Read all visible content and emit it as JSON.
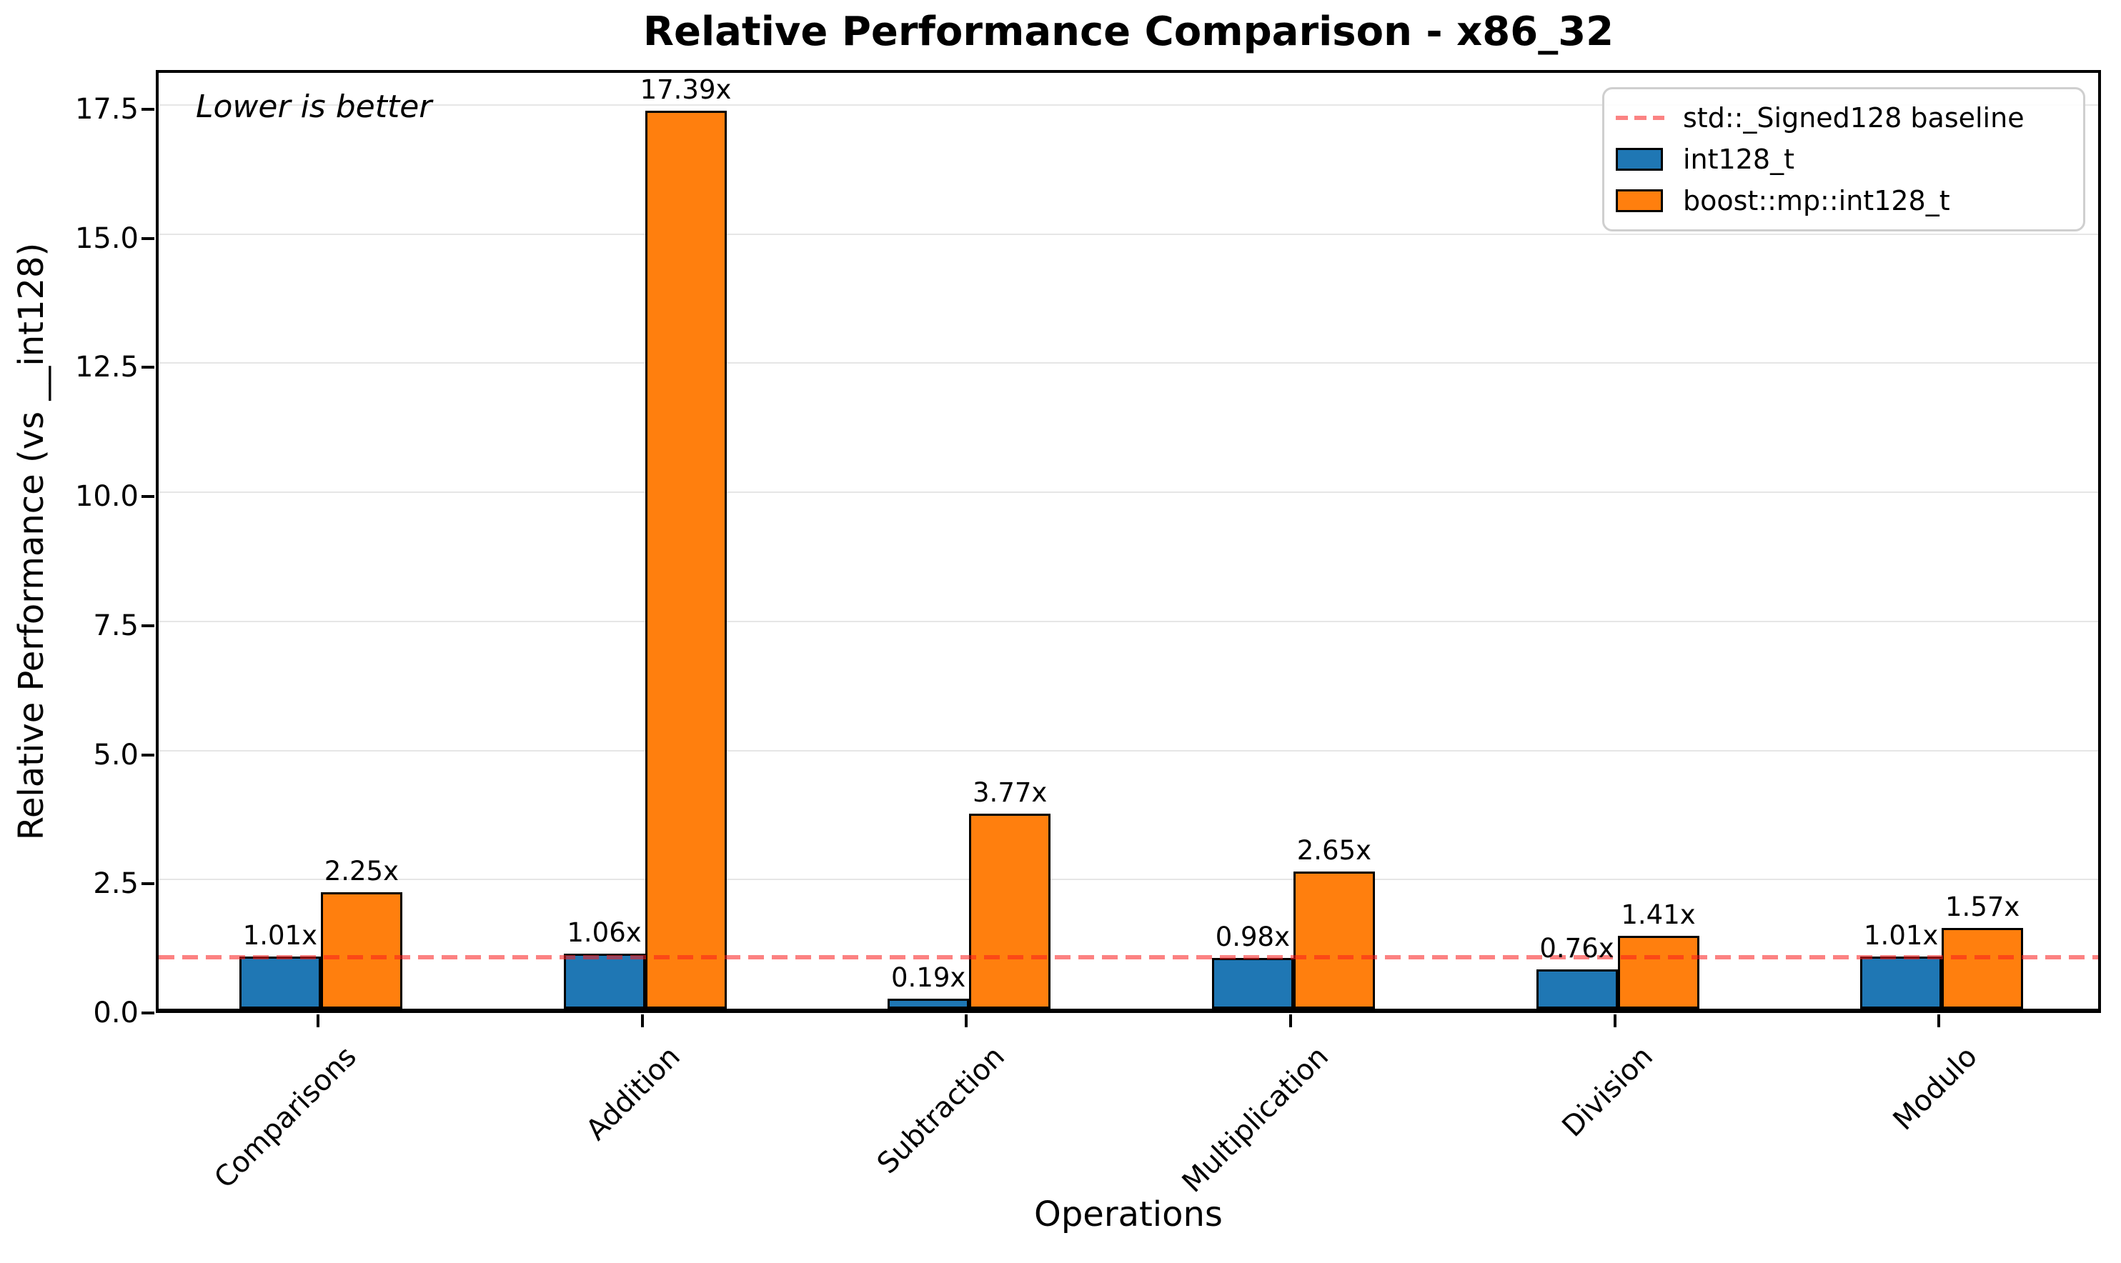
{
  "title": "Relative Performance Comparison - x86_32",
  "annotation": "Lower is better",
  "chart_data": {
    "type": "bar",
    "categories": [
      "Comparisons",
      "Addition",
      "Subtraction",
      "Multiplication",
      "Division",
      "Modulo"
    ],
    "series": [
      {
        "name": "int128_t",
        "color": "#1f77b4",
        "values": [
          1.01,
          1.06,
          0.19,
          0.98,
          0.76,
          1.01
        ],
        "labels": [
          "1.01x",
          "1.06x",
          "0.19x",
          "0.98x",
          "0.76x",
          "1.01x"
        ]
      },
      {
        "name": "boost::mp::int128_t",
        "color": "#ff7f0e",
        "values": [
          2.25,
          17.39,
          3.77,
          2.65,
          1.41,
          1.57
        ],
        "labels": [
          "2.25x",
          "17.39x",
          "3.77x",
          "2.65x",
          "1.41x",
          "1.57x"
        ]
      }
    ],
    "baseline": {
      "value": 1.0,
      "label": "std::_Signed128 baseline",
      "color": "#fb8383"
    },
    "xlabel": "Operations",
    "ylabel": "Relative Performance (vs __int128)",
    "yticks": [
      0.0,
      2.5,
      5.0,
      7.5,
      10.0,
      12.5,
      15.0,
      17.5
    ],
    "ytick_labels": [
      "0.0",
      "2.5",
      "5.0",
      "7.5",
      "10.0",
      "12.5",
      "15.0",
      "17.5"
    ],
    "ylim": [
      0,
      18.26
    ],
    "grid": true,
    "legend_position": "upper right"
  }
}
